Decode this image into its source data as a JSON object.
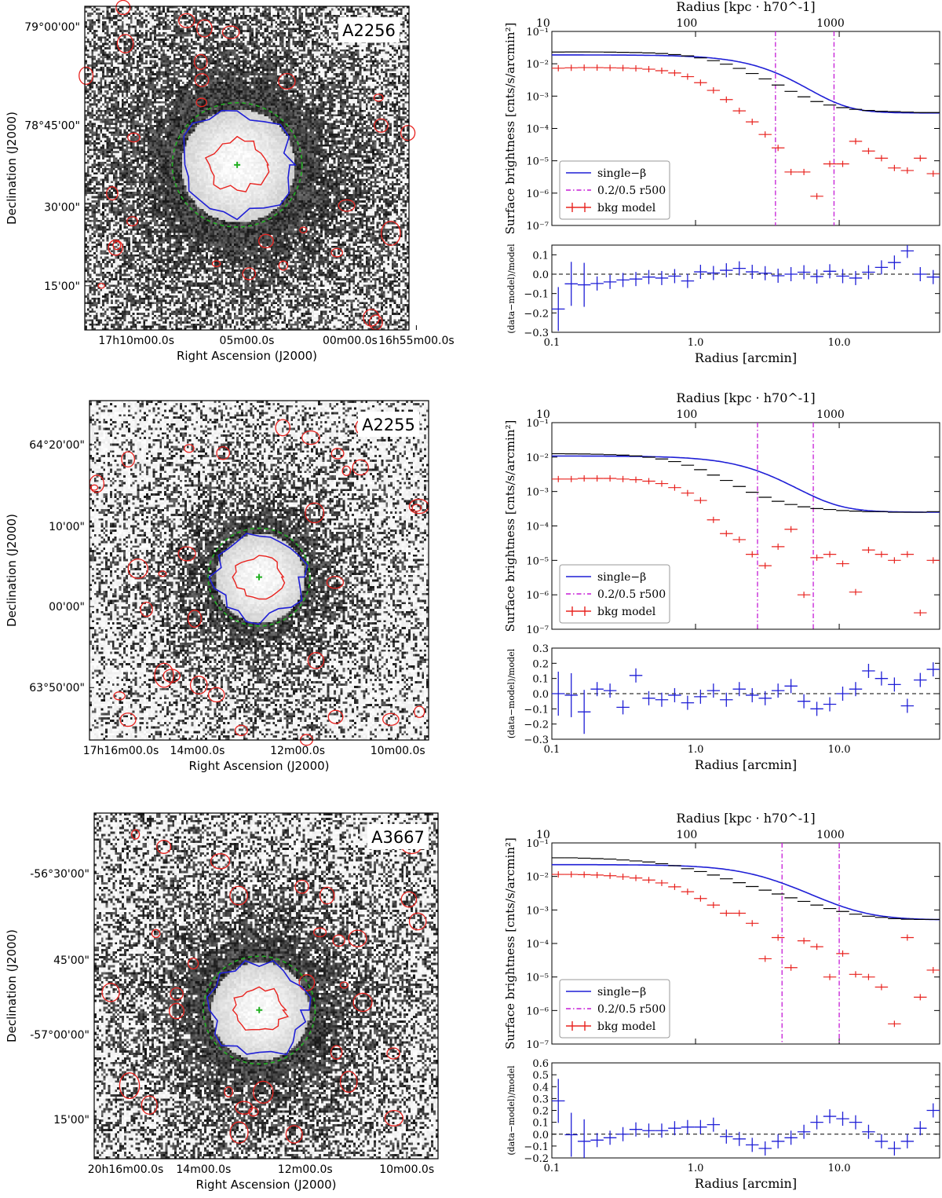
{
  "panels": [
    {
      "cluster": "A2256",
      "image": {
        "dec_ticks": [
          "79°00'00\"",
          "78°45'00\"",
          "30'00\"",
          "15'00\""
        ],
        "ra_ticks": [
          "17h10m00.0s",
          "05m00.0s",
          "00m00.0s",
          "16h55m00.0s"
        ],
        "xlabel": "Right Ascension (J2000)",
        "ylabel": "Declination (J2000)"
      },
      "chart_data": {
        "type": "scatter",
        "title": "",
        "top_axis_label": "Radius [kpc · h70^-1]",
        "top_ticks": [
          "10",
          "100",
          "1000"
        ],
        "ylabel": "Surface brightness [cnts/s/arcmin²]",
        "xlabel": "Radius [arcmin]",
        "x_ticks": [
          "0.1",
          "1.0",
          "10.0"
        ],
        "y_ticks": [
          "10⁻¹",
          "10⁻²",
          "10⁻³",
          "10⁻⁴",
          "10⁻⁵",
          "10⁻⁶",
          "10⁻⁷"
        ],
        "xlim": [
          0.1,
          50
        ],
        "ylim": [
          1e-07,
          0.1
        ],
        "legend": [
          "single−β",
          "0.2/0.5 r500",
          "bkg model"
        ],
        "legend_position": "lower-left",
        "vlines": [
          3.6,
          9.2
        ],
        "model": {
          "s0": 0.0185,
          "rc": 3.8,
          "beta": 0.85,
          "bkg": 0.0003
        },
        "data_series": [
          0.023,
          0.0232,
          0.0232,
          0.0231,
          0.0229,
          0.0226,
          0.0222,
          0.0216,
          0.0207,
          0.0192,
          0.0175,
          0.0152,
          0.0125,
          0.0097,
          0.0072,
          0.005,
          0.0034,
          0.0022,
          0.0014,
          0.00095,
          0.00068,
          0.00053,
          0.00044,
          0.00039,
          0.00036,
          0.00034,
          0.00033,
          0.00032,
          0.00031,
          0.00031
        ],
        "bkg_model_series": [
          0.0073,
          0.0075,
          0.0076,
          0.0076,
          0.0075,
          0.0074,
          0.0072,
          0.0068,
          0.0061,
          0.0052,
          0.004,
          0.0026,
          0.0015,
          0.00078,
          0.00035,
          0.00016,
          6.5e-05,
          2.5e-05,
          4.5e-06,
          4.5e-06,
          8e-07,
          8e-06,
          8e-06,
          4e-05,
          2e-05,
          1.2e-05,
          6e-06,
          5e-06,
          1.2e-05,
          4e-06
        ],
        "ratio_ylabel": "(data−model)/model",
        "ratio_ticks": [
          "0.1",
          "0.0",
          "−0.1",
          "−0.2",
          "−0.3"
        ],
        "ratio_ylim": [
          -0.3,
          0.15
        ],
        "ratio_series": [
          -0.18,
          -0.05,
          -0.055,
          -0.048,
          -0.04,
          -0.03,
          -0.025,
          -0.015,
          -0.02,
          -0.01,
          -0.035,
          0.012,
          0.006,
          0.02,
          0.03,
          0.012,
          0.005,
          -0.008,
          0.0,
          0.01,
          -0.012,
          0.015,
          -0.01,
          -0.02,
          0.01,
          0.035,
          0.06,
          0.12,
          0.0,
          -0.015
        ]
      }
    },
    {
      "cluster": "A2255",
      "image": {
        "dec_ticks": [
          "64°20'00\"",
          "10'00\"",
          "00'00\"",
          "63°50'00\""
        ],
        "ra_ticks": [
          "17h16m00.0s",
          "14m00.0s",
          "12m00.0s",
          "10m00.0s"
        ],
        "xlabel": "Right Ascension (J2000)",
        "ylabel": "Declination (J2000)"
      },
      "chart_data": {
        "type": "scatter",
        "title": "",
        "top_axis_label": "Radius [kpc · h70^-1]",
        "top_ticks": [
          "10",
          "100",
          "1000"
        ],
        "ylabel": "Surface brightness [cnts/s/arcmin²]",
        "xlabel": "Radius [arcmin]",
        "x_ticks": [
          "0.1",
          "1.0",
          "10.0"
        ],
        "y_ticks": [
          "10⁻¹",
          "10⁻²",
          "10⁻³",
          "10⁻⁴",
          "10⁻⁵",
          "10⁻⁶",
          "10⁻⁷"
        ],
        "xlim": [
          0.1,
          50
        ],
        "ylim": [
          1e-07,
          0.1
        ],
        "legend": [
          "single−β",
          "0.2/0.5 r500",
          "bkg model"
        ],
        "legend_position": "lower-left",
        "vlines": [
          2.7,
          6.6
        ],
        "model": {
          "s0": 0.0105,
          "rc": 3.0,
          "beta": 0.75,
          "bkg": 0.00025
        },
        "data_series": [
          0.0125,
          0.0124,
          0.0123,
          0.0121,
          0.0118,
          0.0114,
          0.0108,
          0.0099,
          0.0088,
          0.0074,
          0.0058,
          0.0043,
          0.003,
          0.0021,
          0.0014,
          0.00095,
          0.00068,
          0.00052,
          0.00042,
          0.00036,
          0.00032,
          0.0003,
          0.00028,
          0.00027,
          0.00026,
          0.00026,
          0.00025,
          0.00025,
          0.00025,
          0.00026
        ],
        "bkg_model_series": [
          0.0023,
          0.0023,
          0.0024,
          0.0024,
          0.0024,
          0.0023,
          0.0022,
          0.002,
          0.0017,
          0.0013,
          0.0009,
          0.00055,
          0.00015,
          6e-05,
          4e-05,
          1.5e-05,
          7e-06,
          2.5e-05,
          8e-05,
          1e-06,
          1.2e-05,
          1.5e-05,
          8e-06,
          1.2e-06,
          2e-05,
          1.5e-05,
          1e-05,
          1.5e-05,
          3e-07,
          1e-05
        ],
        "ratio_ylabel": "(data−model)/model",
        "ratio_ticks": [
          "0.3",
          "0.2",
          "0.1",
          "0.0",
          "−0.1",
          "−0.2",
          "−0.3"
        ],
        "ratio_ylim": [
          -0.3,
          0.3
        ],
        "ratio_series": [
          0.0,
          -0.01,
          -0.12,
          0.03,
          0.02,
          -0.09,
          0.12,
          -0.03,
          -0.04,
          -0.01,
          -0.06,
          -0.02,
          0.02,
          -0.04,
          0.03,
          -0.01,
          -0.03,
          0.02,
          0.05,
          -0.05,
          -0.1,
          -0.07,
          0.0,
          0.03,
          0.15,
          0.1,
          0.06,
          -0.08,
          0.09,
          0.16
        ]
      }
    },
    {
      "cluster": "A3667",
      "image": {
        "dec_ticks": [
          "-56°30'00\"",
          "45'00\"",
          "-57°00'00\"",
          "15'00\""
        ],
        "ra_ticks": [
          "20h16m00.0s",
          "14m00.0s",
          "12m00.0s",
          "10m00.0s"
        ],
        "xlabel": "Right Ascension (J2000)",
        "ylabel": "Declination (J2000)"
      },
      "chart_data": {
        "type": "scatter",
        "title": "",
        "top_axis_label": "Radius [kpc · h70^-1]",
        "top_ticks": [
          "10",
          "100",
          "1000"
        ],
        "ylabel": "Surface brightness [cnts/s/arcmin²]",
        "xlabel": "Radius [arcmin]",
        "x_ticks": [
          "0.1",
          "1.0",
          "10.0"
        ],
        "y_ticks": [
          "10⁻¹",
          "10⁻²",
          "10⁻³",
          "10⁻⁴",
          "10⁻⁵",
          "10⁻⁶",
          "10⁻⁷"
        ],
        "xlim": [
          0.1,
          50
        ],
        "ylim": [
          1e-07,
          0.1
        ],
        "legend": [
          "single−β",
          "0.2/0.5 r500",
          "bkg model"
        ],
        "legend_position": "lower-left",
        "vlines": [
          4.0,
          10.0
        ],
        "model": {
          "s0": 0.022,
          "rc": 3.0,
          "beta": 0.6,
          "bkg": 0.0005
        },
        "data_series": [
          0.036,
          0.036,
          0.035,
          0.034,
          0.033,
          0.031,
          0.029,
          0.027,
          0.024,
          0.021,
          0.017,
          0.014,
          0.011,
          0.0085,
          0.0065,
          0.005,
          0.0039,
          0.003,
          0.0023,
          0.0018,
          0.0014,
          0.0011,
          0.0009,
          0.00075,
          0.00065,
          0.0006,
          0.00055,
          0.00053,
          0.00052,
          0.00052
        ],
        "bkg_model_series": [
          0.0115,
          0.0115,
          0.0113,
          0.011,
          0.0105,
          0.0098,
          0.009,
          0.0078,
          0.0064,
          0.0049,
          0.0035,
          0.0022,
          0.0014,
          0.0008,
          0.0008,
          0.0004,
          3.5e-05,
          0.00015,
          1.9e-05,
          0.00012,
          8e-05,
          1e-05,
          5e-05,
          1.2e-05,
          1e-05,
          5e-06,
          4e-07,
          0.00015,
          2.5e-06,
          1.6e-05
        ],
        "ratio_ylabel": "(data−model)/model",
        "ratio_ticks": [
          "0.6",
          "0.5",
          "0.4",
          "0.3",
          "0.2",
          "0.1",
          "0.0",
          "−0.1",
          "−0.2"
        ],
        "ratio_ylim": [
          -0.2,
          0.6
        ],
        "ratio_series": [
          0.28,
          -0.005,
          -0.06,
          -0.05,
          -0.03,
          0.0,
          0.04,
          0.03,
          0.03,
          0.05,
          0.06,
          0.06,
          0.08,
          -0.02,
          -0.04,
          -0.09,
          -0.12,
          -0.06,
          -0.03,
          0.02,
          0.1,
          0.15,
          0.13,
          0.1,
          0.02,
          -0.06,
          -0.12,
          -0.06,
          0.05,
          0.2
        ]
      }
    }
  ],
  "colors": {
    "model": "#1f1fd6",
    "bkg": "#e8231f",
    "data": "#000000",
    "vline": "#c51bd6",
    "contour_green": "#22b022"
  }
}
